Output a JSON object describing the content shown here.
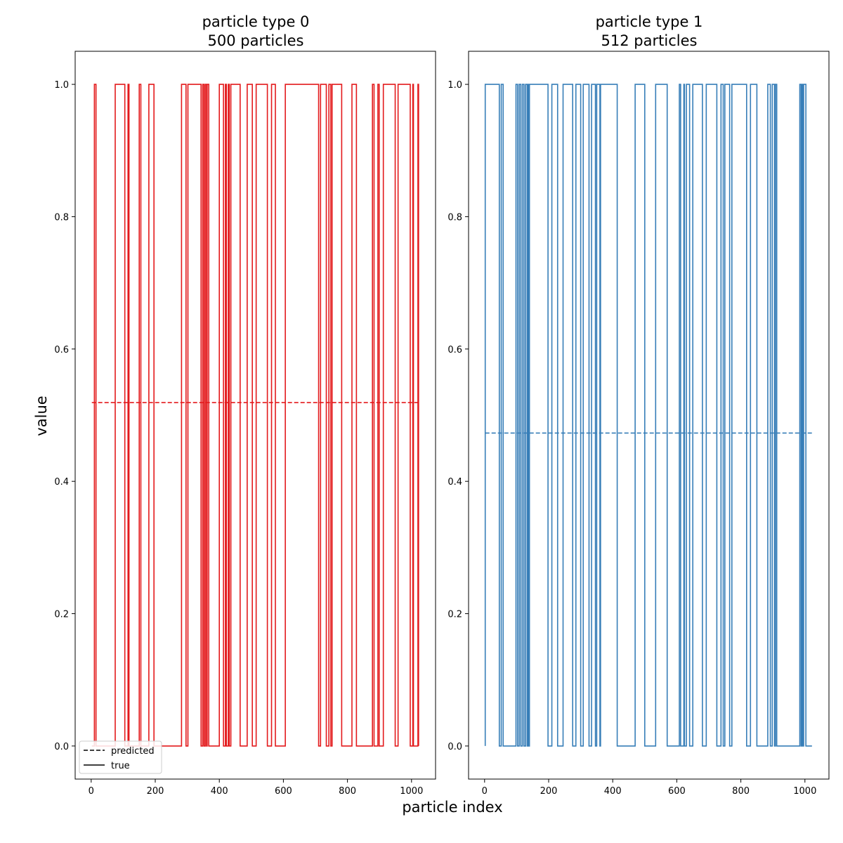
{
  "figure": {
    "xlabel": "particle index",
    "ylabel": "value"
  },
  "legend": {
    "location": "lower-left",
    "items": [
      {
        "label": "predicted",
        "style": "dashed",
        "color": "#000000"
      },
      {
        "label": "true",
        "style": "solid",
        "color": "#000000"
      }
    ]
  },
  "chart_data": [
    {
      "type": "line",
      "title_line1": "particle type 0",
      "title_line2": "500 particles",
      "color": "#e31a1c",
      "xlim": [
        -50,
        1075
      ],
      "ylim": [
        -0.05,
        1.05
      ],
      "xticks": [
        0,
        200,
        400,
        600,
        800,
        1000
      ],
      "yticks": [
        0.0,
        0.2,
        0.4,
        0.6,
        0.8,
        1.0
      ],
      "ytick_labels": [
        "0.0",
        "0.2",
        "0.4",
        "0.6",
        "0.8",
        "1.0"
      ],
      "series": [
        {
          "role": "predicted",
          "style": "dashed",
          "x": [
            2,
            1022
          ],
          "y": [
            0.519,
            0.519
          ]
        },
        {
          "role": "true",
          "style": "steps",
          "x_range": [
            2,
            1022
          ],
          "ones_intervals": [
            [
              10,
              15
            ],
            [
              75,
              105
            ],
            [
              115,
              118
            ],
            [
              150,
              155
            ],
            [
              180,
              196
            ],
            [
              282,
              296
            ],
            [
              302,
              343
            ],
            [
              348,
              352
            ],
            [
              356,
              360
            ],
            [
              362,
              367
            ],
            [
              400,
              413
            ],
            [
              419,
              422
            ],
            [
              428,
              431
            ],
            [
              436,
              465
            ],
            [
              487,
              503
            ],
            [
              515,
              550
            ],
            [
              563,
              575
            ],
            [
              606,
              710
            ],
            [
              716,
              734
            ],
            [
              742,
              748
            ],
            [
              752,
              782
            ],
            [
              814,
              828
            ],
            [
              878,
              883
            ],
            [
              895,
              899
            ],
            [
              912,
              949
            ],
            [
              958,
              996
            ],
            [
              1004,
              1006
            ],
            [
              1020,
              1022
            ]
          ]
        }
      ]
    },
    {
      "type": "line",
      "title_line1": "particle type 1",
      "title_line2": "512 particles",
      "color": "#377eb8",
      "xlim": [
        -50,
        1075
      ],
      "ylim": [
        -0.05,
        1.05
      ],
      "xticks": [
        0,
        200,
        400,
        600,
        800,
        1000
      ],
      "yticks": [
        0.0,
        0.2,
        0.4,
        0.6,
        0.8,
        1.0
      ],
      "ytick_labels": [
        "0.0",
        "0.2",
        "0.4",
        "0.6",
        "0.8",
        "1.0"
      ],
      "series": [
        {
          "role": "predicted",
          "style": "dashed",
          "x": [
            2,
            1022
          ],
          "y": [
            0.473,
            0.473
          ]
        },
        {
          "role": "true",
          "style": "steps",
          "x_range": [
            2,
            1022
          ],
          "ones_intervals": [
            [
              2,
              46
            ],
            [
              52,
              58
            ],
            [
              98,
              103
            ],
            [
              108,
              113
            ],
            [
              118,
              123
            ],
            [
              128,
              133
            ],
            [
              135,
              138
            ],
            [
              140,
              198
            ],
            [
              210,
              228
            ],
            [
              245,
              275
            ],
            [
              285,
              300
            ],
            [
              308,
              326
            ],
            [
              334,
              346
            ],
            [
              350,
              360
            ],
            [
              362,
              414
            ],
            [
              470,
              500
            ],
            [
              534,
              570
            ],
            [
              608,
              612
            ],
            [
              622,
              624
            ],
            [
              630,
              640
            ],
            [
              650,
              680
            ],
            [
              692,
              725
            ],
            [
              738,
              745
            ],
            [
              750,
              765
            ],
            [
              772,
              818
            ],
            [
              830,
              850
            ],
            [
              884,
              892
            ],
            [
              898,
              905
            ],
            [
              908,
              912
            ],
            [
              984,
              988
            ],
            [
              990,
              993
            ],
            [
              996,
              1003
            ]
          ]
        }
      ]
    }
  ]
}
